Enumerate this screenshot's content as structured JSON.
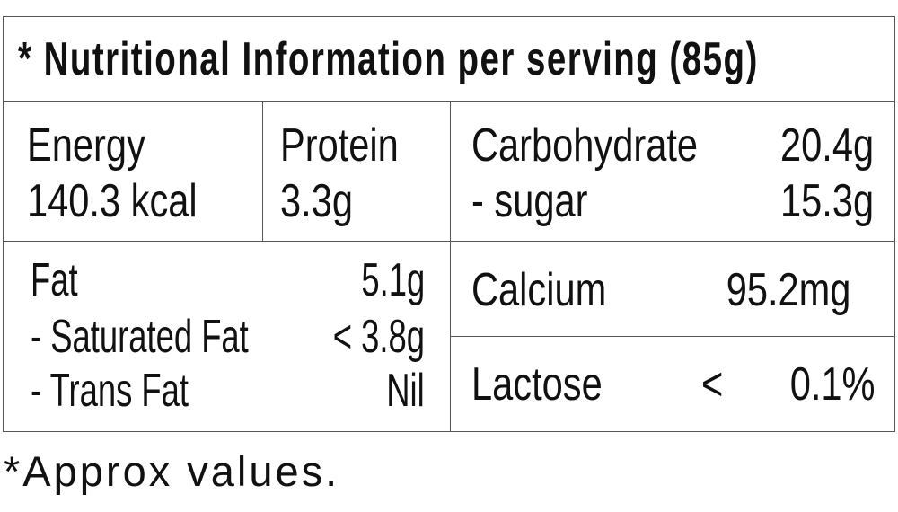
{
  "title": "* Nutritional Information per serving (85g)",
  "energy": {
    "label": "Energy",
    "value": "140.3 kcal"
  },
  "protein": {
    "label": "Protein",
    "value": "3.3g"
  },
  "carbohydrate": {
    "label": "Carbohydrate",
    "value": "20.4g",
    "sugar_label": "- sugar",
    "sugar_value": "15.3g"
  },
  "fat": {
    "label": "Fat",
    "value": "5.1g",
    "saturated_label": "- Saturated Fat",
    "saturated_value": "< 3.8g",
    "trans_label": "- Trans Fat",
    "trans_value": "Nil"
  },
  "calcium": {
    "label": "Calcium",
    "value": "95.2mg"
  },
  "lactose": {
    "label": "Lactose",
    "op": "<",
    "value": "0.1%"
  },
  "footnote": "*Approx values."
}
